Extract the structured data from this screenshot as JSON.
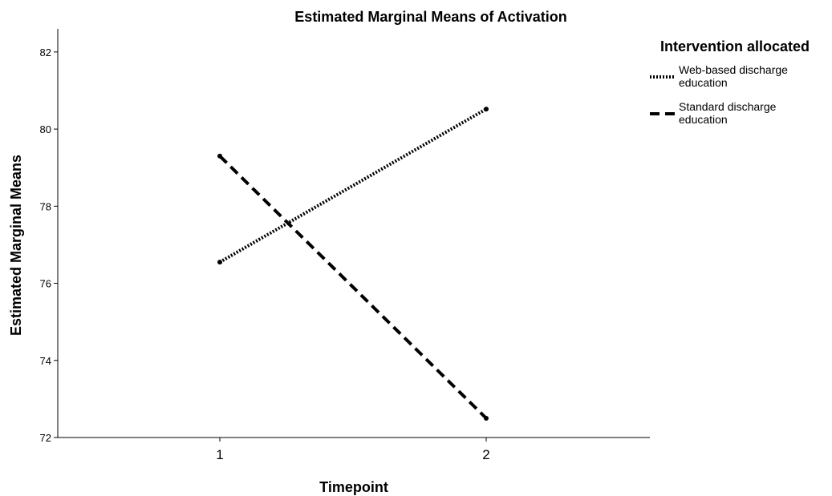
{
  "chart_data": {
    "type": "line",
    "title": "Estimated Marginal Means of Activation",
    "xlabel": "Timepoint",
    "ylabel": "Estimated Marginal Means",
    "categories": [
      "1",
      "2"
    ],
    "ylim": [
      72,
      82.6
    ],
    "yticks": [
      "72",
      "74",
      "76",
      "78",
      "80",
      "82"
    ],
    "grid": false,
    "legend": {
      "title": "Intervention allocated",
      "position": "top-right"
    },
    "series": [
      {
        "name": "Web-based discharge education",
        "name_lines": [
          "Web-based discharge",
          "education"
        ],
        "values": [
          76.55,
          80.52
        ],
        "line_style": "dotted",
        "color": "#000000"
      },
      {
        "name": "Standard discharge education",
        "name_lines": [
          "Standard discharge",
          "education"
        ],
        "values": [
          79.3,
          72.5
        ],
        "line_style": "dashed",
        "color": "#000000"
      }
    ]
  }
}
